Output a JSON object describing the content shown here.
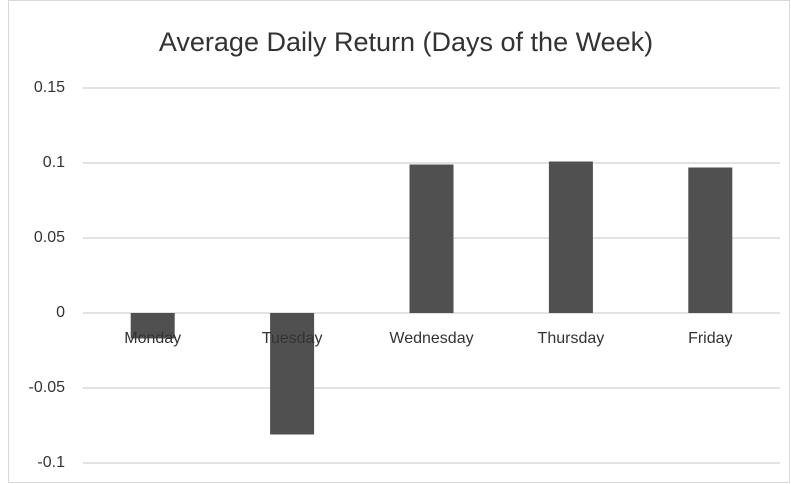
{
  "chart_data": {
    "type": "bar",
    "title": "Average Daily Return (Days of the Week)",
    "categories": [
      "Monday",
      "Tuesday",
      "Wednesday",
      "Thursday",
      "Friday"
    ],
    "values": [
      -0.017,
      -0.081,
      0.099,
      0.101,
      0.097
    ],
    "color": "#505050",
    "ylim": [
      -0.1,
      0.15
    ],
    "yticks": [
      -0.1,
      -0.05,
      0,
      0.05,
      0.1,
      0.15
    ],
    "grid": true
  }
}
